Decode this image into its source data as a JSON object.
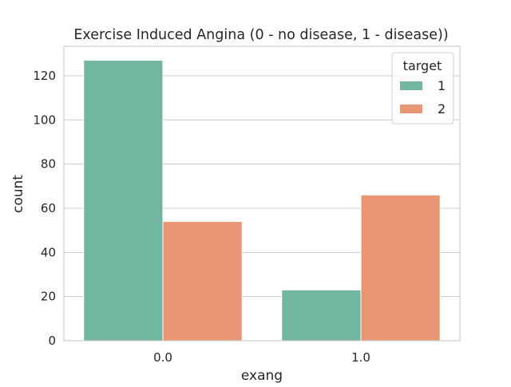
{
  "chart_data": {
    "type": "bar",
    "title": "Exercise Induced Angina (0 - no disease, 1 - disease))",
    "xlabel": "exang",
    "ylabel": "count",
    "categories": [
      "0.0",
      "1.0"
    ],
    "series": [
      {
        "name": "1",
        "values": [
          127,
          23
        ],
        "color": "#72b6a1"
      },
      {
        "name": "2",
        "values": [
          54,
          66
        ],
        "color": "#e99675"
      }
    ],
    "ylim": [
      0,
      133.35
    ],
    "yticks": [
      0,
      20,
      40,
      60,
      80,
      100,
      120
    ],
    "grid": true,
    "legend": {
      "title": "target",
      "placement": "top-right"
    }
  }
}
